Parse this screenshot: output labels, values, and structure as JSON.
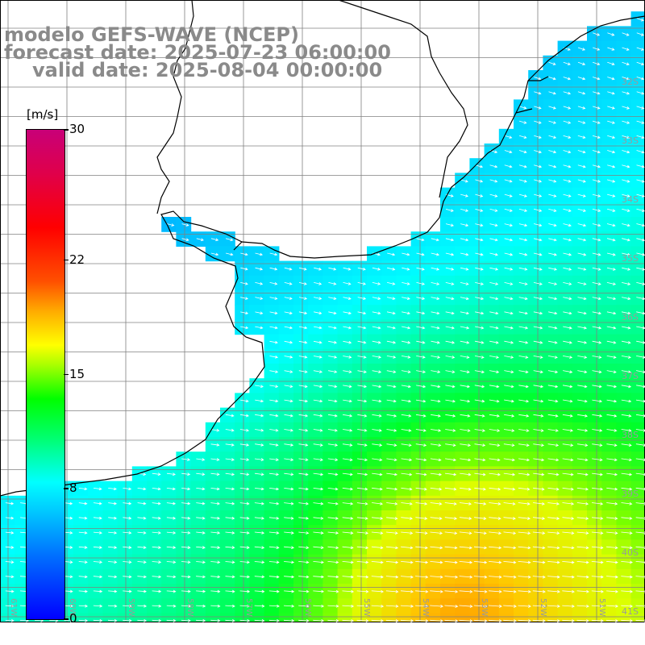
{
  "title": {
    "line1": "modelo GEFS-WAVE (NCEP)",
    "line2": "forecast date: 2025-07-23 06:00:00",
    "line3": "valid date: 2025-08-04 00:00:00"
  },
  "colorbar": {
    "unit": "[m/s]",
    "min": 0,
    "max": 30,
    "ticks": [
      {
        "value": 30,
        "label": "30"
      },
      {
        "value": 22,
        "label": "22"
      },
      {
        "value": 15,
        "label": "15"
      },
      {
        "value": 8,
        "label": "8"
      },
      {
        "value": 0,
        "label": "0"
      }
    ],
    "colors": [
      "#0000ff",
      "#00c8ff",
      "#00ffff",
      "#00ff00",
      "#ffff00",
      "#ff0000",
      "#c80078"
    ]
  },
  "map": {
    "lat_labels": [
      "32S",
      "33S",
      "34S",
      "35S",
      "36S",
      "37S",
      "38S",
      "39S",
      "40S",
      "41S"
    ],
    "lon_labels": [
      "61W",
      "60W",
      "59W",
      "58W",
      "57W",
      "56W",
      "55W",
      "54W",
      "53W",
      "52W",
      "51W"
    ],
    "land_color": "#ffffff",
    "grid_color": "#808080",
    "coast_color": "#000000"
  }
}
